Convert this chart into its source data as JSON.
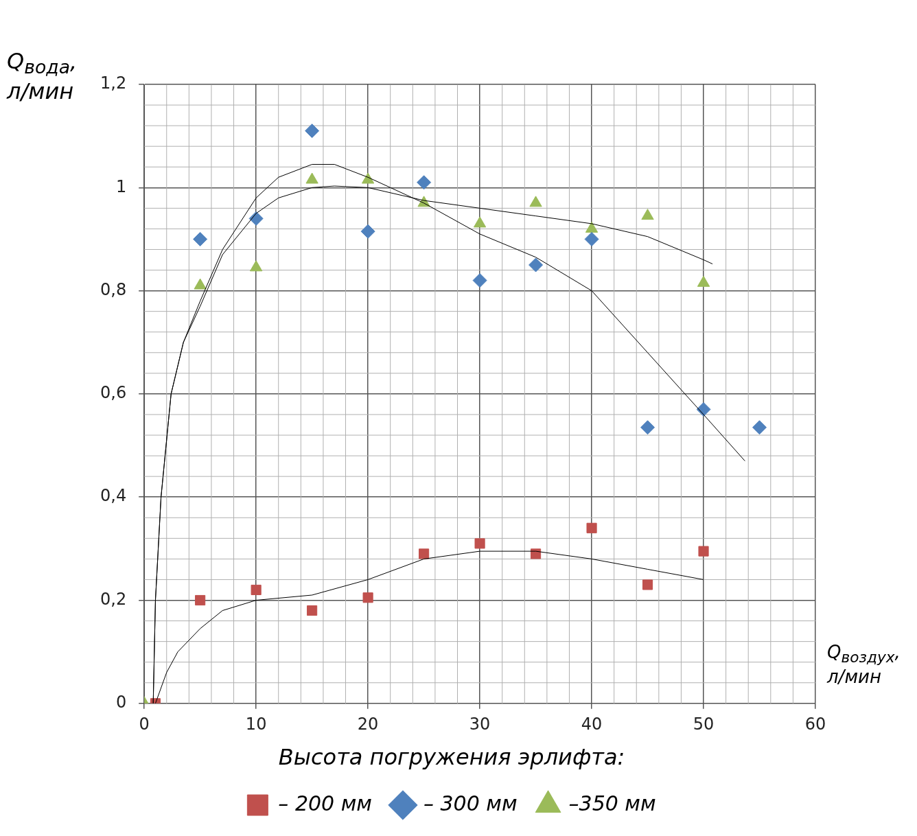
{
  "chart_data": {
    "type": "scatter",
    "xlabel": "Q$_{воздух}$, л/мин",
    "ylabel": "Q$_{вода}$, л/мин",
    "legend_title": "Высота погружения эрлифта:",
    "legend": "bottom",
    "grid": true,
    "xlim": [
      0,
      60
    ],
    "xticks": [
      0,
      10,
      20,
      30,
      40,
      50,
      60
    ],
    "ylim": [
      0,
      1.2
    ],
    "yticks": [
      {
        "value": 0,
        "label": "0"
      },
      {
        "value": 0.2,
        "label": "0,2"
      },
      {
        "value": 0.4,
        "label": "0,4"
      },
      {
        "value": 0.6,
        "label": "0,6"
      },
      {
        "value": 0.8,
        "label": "0,8"
      },
      {
        "value": 1,
        "label": "1"
      },
      {
        "value": 1.2,
        "label": "1,2"
      }
    ],
    "series": [
      {
        "name": "– 200 мм",
        "color": "#c0504d",
        "marker": "square",
        "x": [
          1,
          5,
          10,
          15,
          20,
          25,
          30,
          35,
          40,
          45,
          50
        ],
        "values": [
          0,
          0.2,
          0.22,
          0.18,
          0.205,
          0.29,
          0.31,
          0.29,
          0.34,
          0.23,
          0.295
        ]
      },
      {
        "name": "– 300 мм",
        "color": "#4f81bd",
        "marker": "diamond",
        "x": [
          5,
          10,
          15,
          20,
          25,
          30,
          35,
          40,
          45,
          50,
          55
        ],
        "values": [
          0.9,
          0.94,
          1.11,
          0.915,
          1.01,
          0.82,
          0.85,
          0.9,
          0.535,
          0.57,
          0.535
        ]
      },
      {
        "name": "–350 мм",
        "color": "#9bbb59",
        "marker": "triangle",
        "x": [
          0,
          5,
          10,
          15,
          20,
          25,
          30,
          35,
          40,
          45,
          50
        ],
        "values": [
          0,
          0.81,
          0.845,
          1.015,
          1.015,
          0.97,
          0.93,
          0.97,
          0.92,
          0.945,
          0.815
        ]
      },
      {
        "type": "line",
        "color": "#000000",
        "marker": "none",
        "x": [
          0.8,
          1,
          1.5,
          2.4,
          3.5,
          5,
          7,
          10,
          12,
          15,
          17,
          20,
          25,
          30,
          35,
          40,
          45,
          50,
          53.7
        ],
        "values": [
          0,
          0.2,
          0.4,
          0.6,
          0.7,
          0.78,
          0.88,
          0.98,
          1.02,
          1.045,
          1.045,
          1.02,
          0.97,
          0.91,
          0.865,
          0.8,
          0.68,
          0.56,
          0.47
        ]
      },
      {
        "type": "line",
        "color": "#000000",
        "marker": "none",
        "x": [
          0.8,
          1,
          1.5,
          2.4,
          3.5,
          5,
          7,
          10,
          12,
          15,
          17,
          20,
          25,
          30,
          35,
          40,
          45,
          50,
          50.8
        ],
        "values": [
          0,
          0.2,
          0.4,
          0.6,
          0.7,
          0.77,
          0.87,
          0.95,
          0.98,
          1,
          1.003,
          1,
          0.975,
          0.96,
          0.945,
          0.93,
          0.905,
          0.86,
          0.852
        ]
      },
      {
        "type": "line",
        "color": "#000000",
        "marker": "none",
        "x": [
          1,
          2,
          3,
          5,
          7,
          10,
          15,
          20,
          25,
          30,
          35,
          40,
          45,
          50
        ],
        "values": [
          0,
          0.06,
          0.1,
          0.145,
          0.18,
          0.2,
          0.21,
          0.24,
          0.28,
          0.295,
          0.295,
          0.28,
          0.26,
          0.24
        ]
      }
    ]
  }
}
